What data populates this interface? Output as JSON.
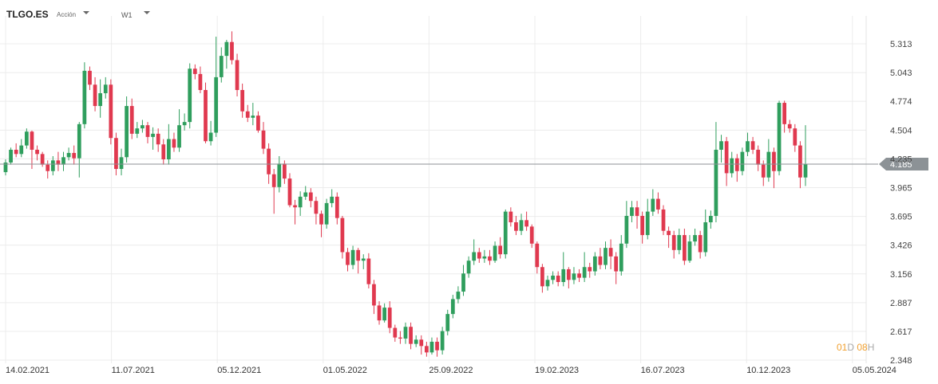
{
  "header": {
    "symbol": "TLGO.ES",
    "symbol_type": "Acción",
    "interval": "W1"
  },
  "countdown": {
    "days": "01",
    "day_unit": "D",
    "hours": "08",
    "hour_unit": "H"
  },
  "colors": {
    "up": "#2f9e5d",
    "down": "#e0394f",
    "grid": "#ececec",
    "price_line": "#8c9296",
    "price_label_bg": "#8c9296"
  },
  "chart_data": {
    "type": "candlestick",
    "symbol": "TLGO.ES",
    "timeframe": "W1",
    "ylim": [
      2.348,
      5.4
    ],
    "y_ticks": [
      "5.313",
      "5.043",
      "4.774",
      "4.504",
      "4.235",
      "3.965",
      "3.695",
      "3.426",
      "3.156",
      "2.887",
      "2.617",
      "2.348"
    ],
    "x_ticks": [
      "14.02.2021",
      "11.07.2021",
      "05.12.2021",
      "01.05.2022",
      "25.09.2022",
      "19.02.2023",
      "16.07.2023",
      "10.12.2023",
      "05.05.2024"
    ],
    "last_price": 4.185,
    "candles": [
      [
        4.11,
        4.2,
        4.08,
        4.23
      ],
      [
        4.2,
        4.32,
        4.18,
        4.34
      ],
      [
        4.32,
        4.28,
        4.25,
        4.38
      ],
      [
        4.28,
        4.36,
        4.25,
        4.42
      ],
      [
        4.36,
        4.49,
        4.33,
        4.52
      ],
      [
        4.49,
        4.32,
        4.14,
        4.5
      ],
      [
        4.32,
        4.28,
        4.22,
        4.36
      ],
      [
        4.28,
        4.18,
        4.16,
        4.3
      ],
      [
        4.18,
        4.12,
        4.05,
        4.22
      ],
      [
        4.12,
        4.22,
        4.08,
        4.26
      ],
      [
        4.22,
        4.18,
        4.12,
        4.3
      ],
      [
        4.18,
        4.25,
        4.12,
        4.3
      ],
      [
        4.25,
        4.29,
        4.22,
        4.34
      ],
      [
        4.29,
        4.24,
        4.18,
        4.36
      ],
      [
        4.24,
        4.56,
        4.06,
        4.58
      ],
      [
        4.56,
        5.06,
        4.52,
        5.14
      ],
      [
        5.06,
        4.93,
        4.88,
        5.1
      ],
      [
        4.93,
        4.73,
        4.68,
        5.0
      ],
      [
        4.73,
        4.85,
        4.62,
        4.98
      ],
      [
        4.85,
        4.93,
        4.8,
        5.0
      ],
      [
        4.93,
        4.43,
        4.37,
        4.98
      ],
      [
        4.43,
        4.14,
        4.08,
        4.48
      ],
      [
        4.14,
        4.25,
        4.08,
        4.33
      ],
      [
        4.25,
        4.73,
        4.2,
        4.82
      ],
      [
        4.73,
        4.47,
        4.42,
        4.8
      ],
      [
        4.47,
        4.52,
        4.43,
        4.58
      ],
      [
        4.52,
        4.55,
        4.48,
        4.6
      ],
      [
        4.55,
        4.44,
        4.38,
        4.58
      ],
      [
        4.44,
        4.47,
        4.32,
        4.53
      ],
      [
        4.47,
        4.37,
        4.3,
        4.52
      ],
      [
        4.37,
        4.23,
        4.18,
        4.42
      ],
      [
        4.23,
        4.42,
        4.18,
        4.56
      ],
      [
        4.42,
        4.34,
        4.3,
        4.48
      ],
      [
        4.34,
        4.55,
        4.3,
        4.7
      ],
      [
        4.55,
        4.58,
        4.5,
        4.66
      ],
      [
        4.58,
        5.08,
        4.52,
        5.13
      ],
      [
        5.08,
        5.03,
        4.98,
        5.12
      ],
      [
        5.03,
        4.88,
        4.85,
        5.1
      ],
      [
        4.88,
        4.4,
        4.38,
        4.95
      ],
      [
        4.4,
        4.48,
        4.36,
        4.59
      ],
      [
        4.48,
        5.0,
        4.44,
        5.38
      ],
      [
        5.0,
        5.2,
        4.95,
        5.28
      ],
      [
        5.2,
        5.33,
        5.08,
        5.35
      ],
      [
        5.33,
        5.16,
        5.12,
        5.43
      ],
      [
        5.16,
        4.88,
        4.82,
        5.22
      ],
      [
        4.88,
        4.68,
        4.62,
        4.94
      ],
      [
        4.68,
        4.62,
        4.58,
        4.74
      ],
      [
        4.62,
        4.64,
        4.55,
        4.76
      ],
      [
        4.64,
        4.5,
        4.48,
        4.68
      ],
      [
        4.5,
        4.33,
        4.28,
        4.58
      ],
      [
        4.33,
        4.09,
        4.0,
        4.38
      ],
      [
        4.09,
        3.97,
        3.72,
        4.14
      ],
      [
        3.97,
        4.19,
        3.92,
        4.26
      ],
      [
        4.19,
        4.05,
        4.0,
        4.22
      ],
      [
        4.05,
        3.8,
        3.78,
        4.1
      ],
      [
        3.8,
        3.78,
        3.62,
        3.85
      ],
      [
        3.78,
        3.88,
        3.7,
        3.93
      ],
      [
        3.88,
        3.92,
        3.85,
        3.98
      ],
      [
        3.92,
        3.84,
        3.78,
        3.96
      ],
      [
        3.84,
        3.72,
        3.62,
        3.88
      ],
      [
        3.72,
        3.62,
        3.5,
        3.75
      ],
      [
        3.62,
        3.82,
        3.58,
        3.86
      ],
      [
        3.82,
        3.88,
        3.78,
        3.95
      ],
      [
        3.88,
        3.68,
        3.62,
        3.92
      ],
      [
        3.68,
        3.36,
        3.3,
        3.7
      ],
      [
        3.36,
        3.24,
        3.18,
        3.4
      ],
      [
        3.24,
        3.38,
        3.2,
        3.42
      ],
      [
        3.38,
        3.28,
        3.16,
        3.4
      ],
      [
        3.28,
        3.3,
        3.2,
        3.34
      ],
      [
        3.3,
        3.06,
        3.02,
        3.35
      ],
      [
        3.06,
        2.86,
        2.78,
        3.1
      ],
      [
        2.86,
        2.72,
        2.68,
        2.9
      ],
      [
        2.72,
        2.84,
        2.7,
        2.88
      ],
      [
        2.84,
        2.65,
        2.6,
        2.9
      ],
      [
        2.65,
        2.56,
        2.52,
        2.68
      ],
      [
        2.56,
        2.55,
        2.5,
        2.62
      ],
      [
        2.55,
        2.66,
        2.5,
        2.7
      ],
      [
        2.66,
        2.5,
        2.45,
        2.7
      ],
      [
        2.5,
        2.54,
        2.47,
        2.58
      ],
      [
        2.54,
        2.48,
        2.4,
        2.58
      ],
      [
        2.48,
        2.42,
        2.38,
        2.52
      ],
      [
        2.42,
        2.52,
        2.4,
        2.56
      ],
      [
        2.52,
        2.44,
        2.38,
        2.56
      ],
      [
        2.44,
        2.62,
        2.4,
        2.66
      ],
      [
        2.62,
        2.78,
        2.58,
        2.82
      ],
      [
        2.78,
        2.92,
        2.74,
        2.96
      ],
      [
        2.92,
        2.99,
        2.88,
        3.04
      ],
      [
        2.99,
        3.16,
        2.95,
        3.24
      ],
      [
        3.16,
        3.28,
        3.12,
        3.32
      ],
      [
        3.28,
        3.36,
        3.24,
        3.48
      ],
      [
        3.36,
        3.3,
        3.26,
        3.4
      ],
      [
        3.3,
        3.32,
        3.26,
        3.38
      ],
      [
        3.32,
        3.28,
        3.24,
        3.38
      ],
      [
        3.28,
        3.42,
        3.26,
        3.46
      ],
      [
        3.42,
        3.34,
        3.3,
        3.5
      ],
      [
        3.34,
        3.74,
        3.3,
        3.76
      ],
      [
        3.74,
        3.64,
        3.6,
        3.78
      ],
      [
        3.64,
        3.56,
        3.52,
        3.7
      ],
      [
        3.56,
        3.66,
        3.52,
        3.72
      ],
      [
        3.66,
        3.6,
        3.56,
        3.74
      ],
      [
        3.6,
        3.44,
        3.4,
        3.62
      ],
      [
        3.44,
        3.22,
        3.16,
        3.46
      ],
      [
        3.22,
        3.04,
        2.98,
        3.25
      ],
      [
        3.04,
        3.1,
        3.0,
        3.14
      ],
      [
        3.1,
        3.14,
        3.06,
        3.18
      ],
      [
        3.14,
        3.08,
        3.04,
        3.18
      ],
      [
        3.08,
        3.2,
        3.04,
        3.36
      ],
      [
        3.2,
        3.1,
        3.02,
        3.22
      ],
      [
        3.1,
        3.16,
        3.06,
        3.22
      ],
      [
        3.16,
        3.12,
        3.08,
        3.2
      ],
      [
        3.12,
        3.22,
        3.08,
        3.36
      ],
      [
        3.22,
        3.18,
        3.12,
        3.26
      ],
      [
        3.18,
        3.32,
        3.14,
        3.36
      ],
      [
        3.32,
        3.24,
        3.2,
        3.4
      ],
      [
        3.24,
        3.4,
        3.2,
        3.46
      ],
      [
        3.4,
        3.32,
        3.2,
        3.48
      ],
      [
        3.32,
        3.18,
        3.06,
        3.36
      ],
      [
        3.18,
        3.44,
        3.14,
        3.52
      ],
      [
        3.44,
        3.7,
        3.4,
        3.84
      ],
      [
        3.7,
        3.78,
        3.64,
        3.84
      ],
      [
        3.78,
        3.7,
        3.58,
        3.84
      ],
      [
        3.7,
        3.52,
        3.44,
        3.74
      ],
      [
        3.52,
        3.74,
        3.48,
        3.86
      ],
      [
        3.74,
        3.86,
        3.7,
        3.95
      ],
      [
        3.86,
        3.76,
        3.72,
        3.92
      ],
      [
        3.76,
        3.56,
        3.52,
        3.8
      ],
      [
        3.56,
        3.52,
        3.4,
        3.6
      ],
      [
        3.52,
        3.38,
        3.3,
        3.56
      ],
      [
        3.38,
        3.52,
        3.34,
        3.58
      ],
      [
        3.52,
        3.28,
        3.24,
        3.58
      ],
      [
        3.28,
        3.46,
        3.26,
        3.52
      ],
      [
        3.46,
        3.52,
        3.42,
        3.58
      ],
      [
        3.52,
        3.36,
        3.3,
        3.56
      ],
      [
        3.36,
        3.64,
        3.32,
        3.76
      ],
      [
        3.64,
        3.7,
        3.58,
        3.75
      ],
      [
        3.7,
        4.32,
        3.64,
        4.58
      ],
      [
        4.32,
        4.4,
        4.2,
        4.46
      ],
      [
        4.4,
        4.1,
        3.98,
        4.44
      ],
      [
        4.1,
        4.24,
        4.06,
        4.3
      ],
      [
        4.24,
        4.12,
        4.02,
        4.28
      ],
      [
        4.12,
        4.3,
        4.08,
        4.34
      ],
      [
        4.3,
        4.4,
        4.26,
        4.48
      ],
      [
        4.4,
        4.32,
        4.28,
        4.44
      ],
      [
        4.32,
        4.18,
        4.12,
        4.36
      ],
      [
        4.18,
        4.06,
        3.98,
        4.22
      ],
      [
        4.06,
        4.3,
        4.02,
        4.42
      ],
      [
        4.3,
        4.12,
        3.96,
        4.34
      ],
      [
        4.12,
        4.76,
        4.08,
        4.78
      ],
      [
        4.76,
        4.56,
        4.48,
        4.78
      ],
      [
        4.56,
        4.52,
        4.48,
        4.6
      ],
      [
        4.52,
        4.36,
        4.3,
        4.56
      ],
      [
        4.36,
        4.06,
        3.96,
        4.4
      ],
      [
        4.06,
        4.185,
        3.98,
        4.55
      ]
    ]
  }
}
